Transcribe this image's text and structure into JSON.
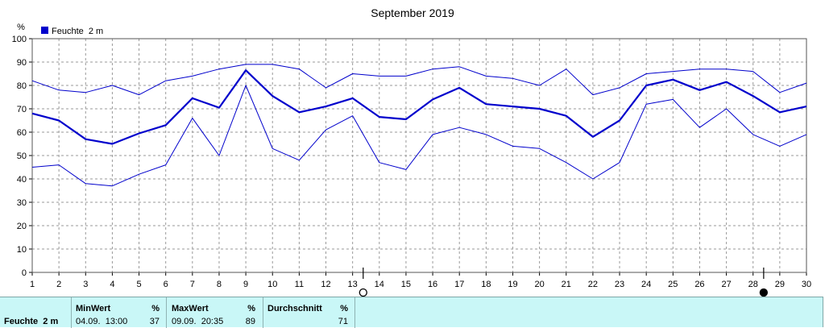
{
  "chart_data": {
    "type": "line",
    "title": "September 2019",
    "ylabel": "%",
    "ylim": [
      0,
      100
    ],
    "yticks": [
      0,
      10,
      20,
      30,
      40,
      50,
      60,
      70,
      80,
      90,
      100
    ],
    "x": [
      1,
      2,
      3,
      4,
      5,
      6,
      7,
      8,
      9,
      10,
      11,
      12,
      13,
      14,
      15,
      16,
      17,
      18,
      19,
      20,
      21,
      22,
      23,
      24,
      25,
      26,
      27,
      28,
      29,
      30
    ],
    "grid": true,
    "legend": "top-left",
    "series": [
      {
        "name": "Feuchte  2 m",
        "role": "mean",
        "color": "#0000cc",
        "values": [
          68,
          65,
          57,
          55,
          59.5,
          63,
          74.5,
          70.5,
          86.5,
          75.5,
          68.5,
          71,
          74.5,
          66.5,
          65.5,
          74,
          79,
          72,
          71,
          70,
          67,
          58,
          65,
          80,
          82.5,
          78,
          81.5,
          75.5,
          68.5,
          71
        ]
      },
      {
        "role": "max",
        "color": "#0000cc",
        "values": [
          82,
          78,
          77,
          80,
          76,
          82,
          84,
          87,
          89,
          89,
          87,
          79,
          85,
          84,
          84,
          87,
          88,
          84,
          83,
          80,
          87,
          76,
          79,
          85,
          86,
          87,
          87,
          86,
          77,
          81
        ]
      },
      {
        "role": "min",
        "color": "#0000cc",
        "values": [
          45,
          46,
          38,
          37,
          42,
          46,
          66,
          50,
          80,
          53,
          48,
          61,
          67,
          47,
          44,
          59,
          62,
          59,
          54,
          53,
          47,
          40,
          47,
          72,
          74,
          62,
          70,
          59,
          54,
          59
        ]
      }
    ],
    "moon_phases": [
      {
        "day": 14,
        "phase": "full"
      },
      {
        "day": 29,
        "phase": "new"
      }
    ]
  },
  "stats": {
    "label": "Feuchte  2 m",
    "min_header": "MinWert",
    "min_unit": "%",
    "min_time": "04.09.  13:00",
    "min_value": "37",
    "max_header": "MaxWert",
    "max_unit": "%",
    "max_time": "09.09.  20:35",
    "max_value": "89",
    "avg_header": "Durchschnitt",
    "avg_unit": "%",
    "avg_value": "71"
  }
}
